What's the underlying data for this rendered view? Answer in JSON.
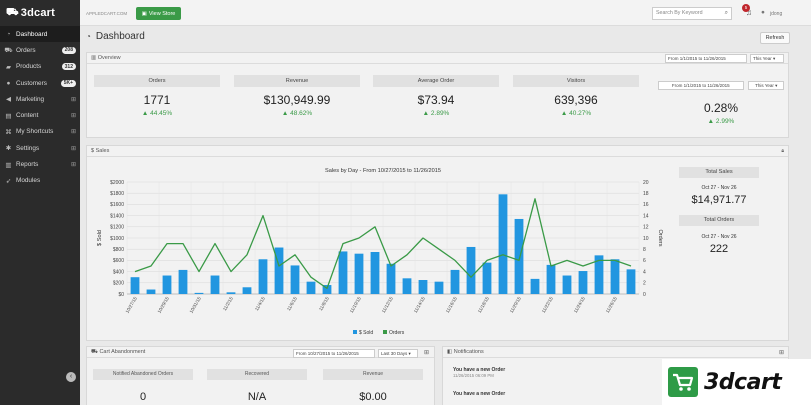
{
  "app": {
    "logo": "3dcart",
    "url": "APPLEDCART.COM"
  },
  "sidebar": {
    "items": [
      {
        "label": "Dashboard",
        "icon": "dashboard-icon",
        "glyph": "◔",
        "badge": "",
        "plus": false,
        "active": true
      },
      {
        "label": "Orders",
        "icon": "cart-icon",
        "glyph": "⛟",
        "badge": "208",
        "plus": false,
        "active": false
      },
      {
        "label": "Products",
        "icon": "tag-icon",
        "glyph": "▰",
        "badge": "312",
        "plus": false,
        "active": false
      },
      {
        "label": "Customers",
        "icon": "user-icon",
        "glyph": "●",
        "badge": "5K+",
        "plus": false,
        "active": false
      },
      {
        "label": "Marketing",
        "icon": "megaphone-icon",
        "glyph": "◀",
        "badge": "",
        "plus": true,
        "active": false
      },
      {
        "label": "Content",
        "icon": "file-icon",
        "glyph": "▤",
        "badge": "",
        "plus": true,
        "active": false
      },
      {
        "label": "My Shortcuts",
        "icon": "link-icon",
        "glyph": "⌘",
        "badge": "",
        "plus": true,
        "active": false
      },
      {
        "label": "Settings",
        "icon": "gear-icon",
        "glyph": "✱",
        "badge": "",
        "plus": true,
        "active": false
      },
      {
        "label": "Reports",
        "icon": "chart-icon",
        "glyph": "▥",
        "badge": "",
        "plus": true,
        "active": false
      },
      {
        "label": "Modules",
        "icon": "rocket-icon",
        "glyph": "➶",
        "badge": "",
        "plus": false,
        "active": false
      }
    ]
  },
  "topbar": {
    "view_store": "View Store",
    "search_placeholder": "Search By Keyword",
    "notifications": "5",
    "user": "jdong"
  },
  "header": {
    "title": "Dashboard",
    "refresh": "Refresh"
  },
  "overview": {
    "title": "Overview",
    "range": "From 1/1/2015 to 11/26/2015",
    "period": "This Year",
    "stats": [
      {
        "label": "Orders",
        "value": "1771",
        "change": "44.45%"
      },
      {
        "label": "Revenue",
        "value": "$130,949.99",
        "change": "48.62%"
      },
      {
        "label": "Average Order",
        "value": "$73.94",
        "change": "2.89%"
      },
      {
        "label": "Visitors",
        "value": "639,396",
        "change": "40.27%"
      }
    ],
    "conversion": {
      "range": "From 1/1/2015 to 11/26/2015",
      "period": "This Year",
      "value": "0.28%",
      "change": "2.99%"
    }
  },
  "sales": {
    "title": "$ Sales",
    "total_sales_label": "Total Sales",
    "total_sales_range": "Oct 27 - Nov 26",
    "total_sales_value": "$14,971.77",
    "total_orders_label": "Total Orders",
    "total_orders_range": "Oct 27 - Nov 26",
    "total_orders_value": "222"
  },
  "cart_abandonment": {
    "title": "Cart Abandonment",
    "range": "From 10/27/2015 to 11/26/2015",
    "period": "Last 30 Days",
    "headers": [
      "Notified Abandoned Orders",
      "Recovered",
      "Revenue"
    ],
    "values": [
      "0",
      "N/A",
      "$0.00"
    ]
  },
  "notifications": {
    "title": "Notifications",
    "items": [
      {
        "title": "You have a new Order",
        "time": "11/26/2015 06:09 PM"
      },
      {
        "title": "You have a new Order",
        "time": ""
      }
    ]
  },
  "chart_data": {
    "type": "bar",
    "title": "Sales by Day - From 10/27/2015 to 11/26/2015",
    "ylabel": "$ Sold",
    "y2label": "Orders",
    "ylim": [
      0,
      2000
    ],
    "y2lim": [
      0,
      20
    ],
    "yticks": [
      "$0",
      "$200",
      "$400",
      "$600",
      "$800",
      "$1000",
      "$1200",
      "$1400",
      "$1600",
      "$1800",
      "$2000"
    ],
    "y2ticks": [
      "0",
      "2",
      "4",
      "6",
      "8",
      "10",
      "12",
      "14",
      "16",
      "18",
      "20"
    ],
    "xtick_labels": [
      "10/27/15",
      "10/29/15",
      "10/31/15",
      "11/2/15",
      "11/4/15",
      "11/6/15",
      "11/8/15",
      "11/10/15",
      "11/12/15",
      "11/14/15",
      "11/16/15",
      "11/18/15",
      "11/20/15",
      "11/22/15",
      "11/24/15",
      "11/26/15"
    ],
    "series": [
      {
        "name": "$ Sold",
        "type": "bar",
        "color": "#2196e0",
        "values": [
          300,
          80,
          330,
          430,
          20,
          330,
          30,
          120,
          620,
          830,
          510,
          220,
          160,
          760,
          720,
          750,
          540,
          280,
          250,
          220,
          430,
          840,
          560,
          1780,
          1340,
          270,
          520,
          330,
          410,
          690,
          620,
          440
        ]
      },
      {
        "name": "Orders",
        "type": "line",
        "color": "#3a9a47",
        "values": [
          4,
          5,
          9,
          9,
          4,
          9,
          4,
          7,
          14,
          5,
          7,
          3,
          1,
          9,
          10,
          12,
          5,
          7,
          10,
          8,
          6,
          3,
          6,
          7,
          6,
          17,
          5,
          6,
          5,
          6,
          6,
          5
        ]
      }
    ],
    "legend": "bottom",
    "grid": true
  }
}
